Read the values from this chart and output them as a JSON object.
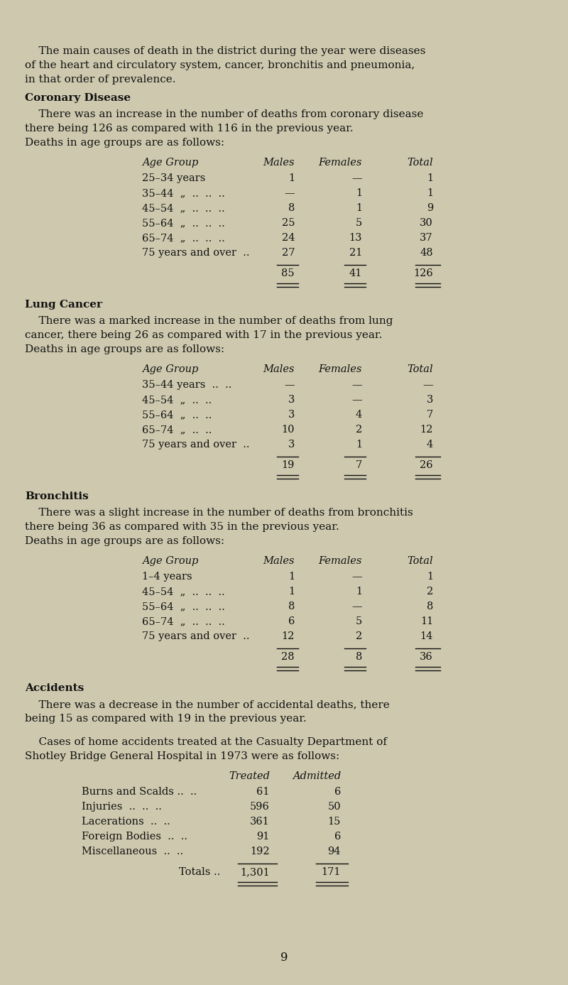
{
  "bg_color": "#cec9ae",
  "text_color": "#111111",
  "page_number": "9",
  "intro_text_lines": [
    "    The main causes of death in the district during the year were diseases",
    "of the heart and circulatory system, cancer, bronchitis and pneumonia,",
    "in that order of prevalence."
  ],
  "sections": [
    {
      "heading": "Coronary Disease",
      "intro_lines": [
        "    There was an increase in the number of deaths from coronary disease",
        "there being 126 as compared with 116 in the previous year.",
        "Deaths in age groups are as follows:"
      ],
      "table": {
        "col_header": [
          "Age Group",
          "Males",
          "Females",
          "Total"
        ],
        "rows": [
          [
            "25–34 years",
            "1",
            "—",
            "1"
          ],
          [
            "35–44  „  ..  ..  ..",
            "—",
            "1",
            "1"
          ],
          [
            "45–54  „  ..  ..  ..",
            "8",
            "1",
            "9"
          ],
          [
            "55–64  „  ..  ..  ..",
            "25",
            "5",
            "30"
          ],
          [
            "65–74  „  ..  ..  ..",
            "24",
            "13",
            "37"
          ],
          [
            "75 years and over  ..",
            "27",
            "21",
            "48"
          ]
        ],
        "totals": [
          "85",
          "41",
          "126"
        ]
      }
    },
    {
      "heading": "Lung Cancer",
      "intro_lines": [
        "    There was a marked increase in the number of deaths from lung",
        "cancer, there being 26 as compared with 17 in the previous year.",
        "Deaths in age groups are as follows:"
      ],
      "table": {
        "col_header": [
          "Age Group",
          "Males",
          "Females",
          "Total"
        ],
        "rows": [
          [
            "35–44 years  ..  ..",
            "—",
            "—",
            "—"
          ],
          [
            "45–54  „  ..  ..",
            "3",
            "—",
            "3"
          ],
          [
            "55–64  „  ..  ..",
            "3",
            "4",
            "7"
          ],
          [
            "65–74  „  ..  ..",
            "10",
            "2",
            "12"
          ],
          [
            "75 years and over  ..",
            "3",
            "1",
            "4"
          ]
        ],
        "totals": [
          "19",
          "7",
          "26"
        ]
      }
    },
    {
      "heading": "Bronchitis",
      "intro_lines": [
        "    There was a slight increase in the number of deaths from bronchitis",
        "there being 36 as compared with 35 in the previous year.",
        "Deaths in age groups are as follows:"
      ],
      "table": {
        "col_header": [
          "Age Group",
          "Males",
          "Females",
          "Total"
        ],
        "rows": [
          [
            "1–4 years",
            "1",
            "—",
            "1"
          ],
          [
            "45–54  „  ..  ..  ..",
            "1",
            "1",
            "2"
          ],
          [
            "55–64  „  ..  ..  ..",
            "8",
            "—",
            "8"
          ],
          [
            "65–74  „  ..  ..  ..",
            "6",
            "5",
            "11"
          ],
          [
            "75 years and over  ..",
            "12",
            "2",
            "14"
          ]
        ],
        "totals": [
          "28",
          "8",
          "36"
        ]
      }
    },
    {
      "heading": "Accidents",
      "intro_lines": [
        "    There was a decrease in the number of accidental deaths, there",
        "being 15 as compared with 19 in the previous year."
      ],
      "extra_intro_lines": [
        "    Cases of home accidents treated at the Casualty Department of",
        "Shotley Bridge General Hospital in 1973 were as follows:"
      ],
      "accident_table": {
        "col_header": [
          "",
          "Treated",
          "Admitted"
        ],
        "rows": [
          [
            "Burns and Scalds ..  ..",
            "61",
            "6"
          ],
          [
            "Injuries  ..  ..  ..",
            "596",
            "50"
          ],
          [
            "Lacerations  ..  ..",
            "361",
            "15"
          ],
          [
            "Foreign Bodies  ..  ..",
            "91",
            "6"
          ],
          [
            "Miscellaneous  ..  ..",
            "192",
            "94"
          ]
        ],
        "totals": [
          "Totals ..",
          "1,301",
          "171"
        ]
      }
    }
  ]
}
